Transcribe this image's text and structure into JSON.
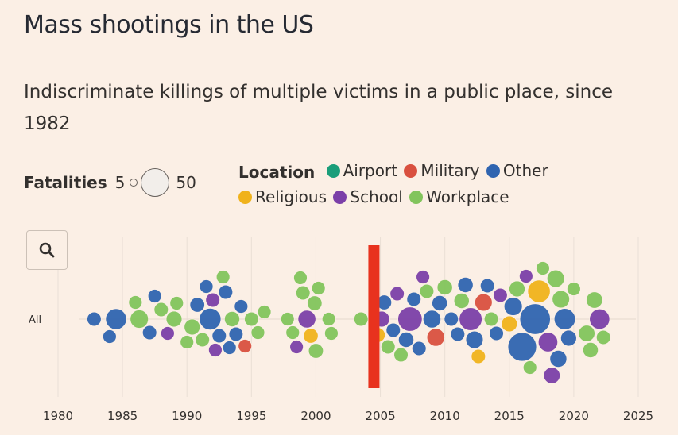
{
  "title": "Mass shootings in the US",
  "subtitle": "Indiscriminate killings of multiple victims in a public place, since 1982",
  "legend": {
    "fatalities_label": "Fatalities",
    "fatalities_min": "5",
    "fatalities_max": "50",
    "location_label": "Location",
    "locations": [
      {
        "label": "Airport",
        "color": "#1a9e7a"
      },
      {
        "label": "Military",
        "color": "#d9503f"
      },
      {
        "label": "Other",
        "color": "#2f64b0"
      },
      {
        "label": "Religious",
        "color": "#f0b21b"
      },
      {
        "label": "School",
        "color": "#7b3fa8"
      },
      {
        "label": "Workplace",
        "color": "#82c45c"
      }
    ]
  },
  "search": {
    "icon": "search-icon"
  },
  "annotation_color": "#e8321e",
  "chart_data": {
    "type": "scatter",
    "row_label": "All",
    "x_ticks": [
      "1980",
      "1985",
      "1990",
      "1995",
      "2000",
      "2005",
      "2010",
      "2015",
      "2020",
      "2025"
    ],
    "xlim": [
      1978,
      2026
    ],
    "highlight_year": 2004.5,
    "points": [
      {
        "year": 1982.8,
        "loc": "Other",
        "f": 6
      },
      {
        "year": 1984.0,
        "loc": "Other",
        "f": 5
      },
      {
        "year": 1984.5,
        "loc": "Other",
        "f": 21
      },
      {
        "year": 1986.0,
        "loc": "Workplace",
        "f": 5
      },
      {
        "year": 1986.3,
        "loc": "Workplace",
        "f": 14
      },
      {
        "year": 1987.1,
        "loc": "Other",
        "f": 6
      },
      {
        "year": 1987.5,
        "loc": "Other",
        "f": 5
      },
      {
        "year": 1988.0,
        "loc": "Workplace",
        "f": 6
      },
      {
        "year": 1988.5,
        "loc": "School",
        "f": 5
      },
      {
        "year": 1989.0,
        "loc": "Workplace",
        "f": 9
      },
      {
        "year": 1989.2,
        "loc": "Workplace",
        "f": 5
      },
      {
        "year": 1990.0,
        "loc": "Workplace",
        "f": 5
      },
      {
        "year": 1990.4,
        "loc": "Workplace",
        "f": 9
      },
      {
        "year": 1990.8,
        "loc": "Other",
        "f": 7
      },
      {
        "year": 1991.2,
        "loc": "Workplace",
        "f": 6
      },
      {
        "year": 1991.5,
        "loc": "Other",
        "f": 5
      },
      {
        "year": 1991.8,
        "loc": "Other",
        "f": 23
      },
      {
        "year": 1992.2,
        "loc": "School",
        "f": 5
      },
      {
        "year": 1992.0,
        "loc": "School",
        "f": 6
      },
      {
        "year": 1992.5,
        "loc": "Other",
        "f": 6
      },
      {
        "year": 1992.8,
        "loc": "Workplace",
        "f": 5
      },
      {
        "year": 1993.0,
        "loc": "Other",
        "f": 6
      },
      {
        "year": 1993.3,
        "loc": "Other",
        "f": 5
      },
      {
        "year": 1993.5,
        "loc": "Workplace",
        "f": 8
      },
      {
        "year": 1993.8,
        "loc": "Other",
        "f": 6
      },
      {
        "year": 1994.2,
        "loc": "Other",
        "f": 5
      },
      {
        "year": 1994.5,
        "loc": "Military",
        "f": 5
      },
      {
        "year": 1995.0,
        "loc": "Workplace",
        "f": 6
      },
      {
        "year": 1995.5,
        "loc": "Workplace",
        "f": 5
      },
      {
        "year": 1996.0,
        "loc": "Workplace",
        "f": 5
      },
      {
        "year": 1997.8,
        "loc": "Workplace",
        "f": 5
      },
      {
        "year": 1998.2,
        "loc": "Workplace",
        "f": 5
      },
      {
        "year": 1998.5,
        "loc": "School",
        "f": 5
      },
      {
        "year": 1998.8,
        "loc": "Workplace",
        "f": 5
      },
      {
        "year": 1999.0,
        "loc": "Workplace",
        "f": 6
      },
      {
        "year": 1999.3,
        "loc": "School",
        "f": 13
      },
      {
        "year": 1999.6,
        "loc": "Religious",
        "f": 7
      },
      {
        "year": 1999.9,
        "loc": "Workplace",
        "f": 7
      },
      {
        "year": 2000.0,
        "loc": "Workplace",
        "f": 7
      },
      {
        "year": 2000.2,
        "loc": "Workplace",
        "f": 5
      },
      {
        "year": 2001.0,
        "loc": "Workplace",
        "f": 5
      },
      {
        "year": 2001.2,
        "loc": "Workplace",
        "f": 5
      },
      {
        "year": 2003.5,
        "loc": "Workplace",
        "f": 6
      },
      {
        "year": 2004.8,
        "loc": "Religious",
        "f": 7
      },
      {
        "year": 2005.1,
        "loc": "School",
        "f": 9
      },
      {
        "year": 2005.3,
        "loc": "Other",
        "f": 7
      },
      {
        "year": 2005.6,
        "loc": "Workplace",
        "f": 6
      },
      {
        "year": 2006.0,
        "loc": "Other",
        "f": 6
      },
      {
        "year": 2006.3,
        "loc": "School",
        "f": 6
      },
      {
        "year": 2006.6,
        "loc": "Workplace",
        "f": 6
      },
      {
        "year": 2007.0,
        "loc": "Other",
        "f": 8
      },
      {
        "year": 2007.3,
        "loc": "School",
        "f": 32
      },
      {
        "year": 2007.6,
        "loc": "Other",
        "f": 6
      },
      {
        "year": 2008.0,
        "loc": "Other",
        "f": 6
      },
      {
        "year": 2008.3,
        "loc": "School",
        "f": 5
      },
      {
        "year": 2008.6,
        "loc": "Workplace",
        "f": 6
      },
      {
        "year": 2009.0,
        "loc": "Other",
        "f": 13
      },
      {
        "year": 2009.3,
        "loc": "Military",
        "f": 13
      },
      {
        "year": 2009.6,
        "loc": "Other",
        "f": 8
      },
      {
        "year": 2010.0,
        "loc": "Workplace",
        "f": 8
      },
      {
        "year": 2010.5,
        "loc": "Other",
        "f": 6
      },
      {
        "year": 2011.0,
        "loc": "Other",
        "f": 6
      },
      {
        "year": 2011.3,
        "loc": "Workplace",
        "f": 8
      },
      {
        "year": 2011.6,
        "loc": "Other",
        "f": 8
      },
      {
        "year": 2012.0,
        "loc": "School",
        "f": 27
      },
      {
        "year": 2012.3,
        "loc": "Other",
        "f": 12
      },
      {
        "year": 2012.6,
        "loc": "Religious",
        "f": 6
      },
      {
        "year": 2013.0,
        "loc": "Military",
        "f": 12
      },
      {
        "year": 2013.3,
        "loc": "Other",
        "f": 6
      },
      {
        "year": 2013.6,
        "loc": "Workplace",
        "f": 6
      },
      {
        "year": 2014.0,
        "loc": "Other",
        "f": 6
      },
      {
        "year": 2014.3,
        "loc": "School",
        "f": 6
      },
      {
        "year": 2015.0,
        "loc": "Religious",
        "f": 9
      },
      {
        "year": 2015.3,
        "loc": "Other",
        "f": 14
      },
      {
        "year": 2015.6,
        "loc": "Workplace",
        "f": 9
      },
      {
        "year": 2016.0,
        "loc": "Other",
        "f": 49
      },
      {
        "year": 2016.3,
        "loc": "School",
        "f": 5
      },
      {
        "year": 2016.6,
        "loc": "Workplace",
        "f": 5
      },
      {
        "year": 2017.0,
        "loc": "Other",
        "f": 58
      },
      {
        "year": 2017.3,
        "loc": "Religious",
        "f": 26
      },
      {
        "year": 2017.6,
        "loc": "Workplace",
        "f": 5
      },
      {
        "year": 2018.0,
        "loc": "School",
        "f": 17
      },
      {
        "year": 2018.3,
        "loc": "School",
        "f": 10
      },
      {
        "year": 2018.6,
        "loc": "Workplace",
        "f": 12
      },
      {
        "year": 2018.8,
        "loc": "Other",
        "f": 11
      },
      {
        "year": 2019.0,
        "loc": "Workplace",
        "f": 12
      },
      {
        "year": 2019.3,
        "loc": "Other",
        "f": 22
      },
      {
        "year": 2019.6,
        "loc": "Other",
        "f": 9
      },
      {
        "year": 2020.0,
        "loc": "Workplace",
        "f": 5
      },
      {
        "year": 2021.0,
        "loc": "Workplace",
        "f": 10
      },
      {
        "year": 2021.3,
        "loc": "Workplace",
        "f": 8
      },
      {
        "year": 2021.6,
        "loc": "Workplace",
        "f": 10
      },
      {
        "year": 2022.0,
        "loc": "School",
        "f": 19
      },
      {
        "year": 2022.3,
        "loc": "Workplace",
        "f": 6
      }
    ]
  }
}
